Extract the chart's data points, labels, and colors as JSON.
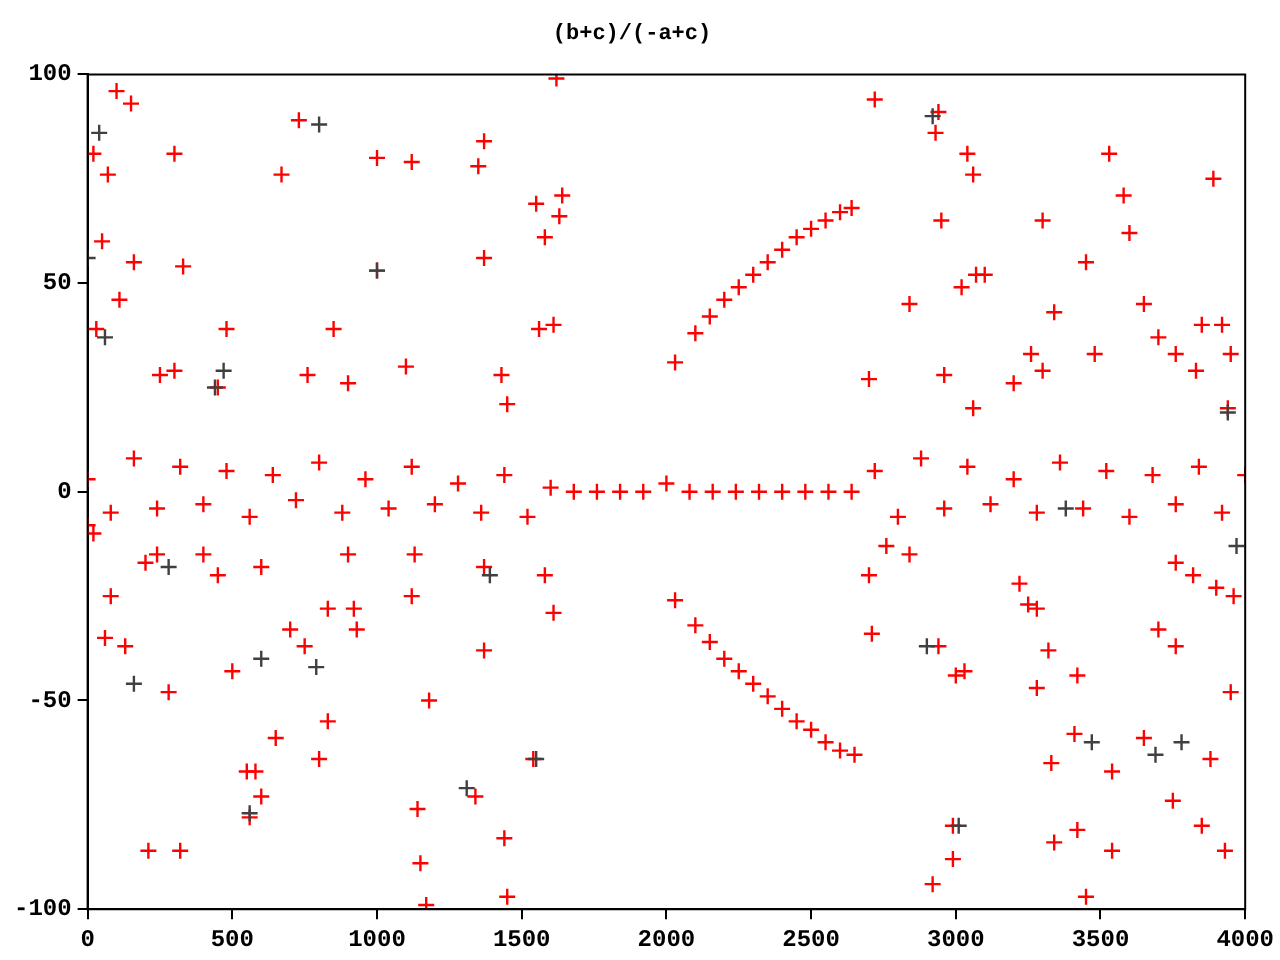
{
  "chart_data": {
    "type": "scatter",
    "title": "(b+c)/(-a+c)",
    "xlim": [
      0,
      4000
    ],
    "xticks": [
      0,
      500,
      1000,
      1500,
      2000,
      2500,
      3000,
      3500,
      4000
    ],
    "ylim": [
      -100,
      100
    ],
    "yticks": [
      -100,
      -50,
      0,
      50,
      100
    ],
    "grid": false,
    "marker": "cross",
    "series": [
      {
        "color": "#404040",
        "x": [
          0,
          40,
          60,
          160,
          280,
          440,
          470,
          560,
          600,
          790,
          800,
          1000,
          1310,
          1390,
          1550,
          2900,
          2920,
          3010,
          3380,
          3470,
          3690,
          3780,
          3940,
          3970
        ],
        "values": [
          56,
          86,
          37,
          -46,
          -18,
          25,
          29,
          -77,
          -40,
          -42,
          88,
          53,
          -71,
          -20,
          -64,
          -37,
          90,
          -80,
          -4,
          -60,
          -63,
          -60,
          19,
          -13
        ]
      },
      {
        "color": "#ff0000",
        "x": [
          0,
          20,
          30,
          50,
          70,
          100,
          110,
          150,
          160,
          300,
          330,
          20,
          60,
          80,
          130,
          210,
          320,
          280,
          250,
          300,
          480,
          500,
          550,
          580,
          560,
          600,
          650,
          670,
          730,
          800,
          830,
          850,
          1000,
          1000,
          1120,
          1120,
          1140,
          1150,
          1170,
          1180,
          1350,
          1370,
          1370,
          1340,
          1450,
          1440,
          1540,
          1550,
          1580,
          1620,
          1640,
          1630,
          1560,
          1610,
          1580,
          1610,
          1370,
          1370,
          400,
          450,
          600,
          700,
          750,
          900,
          930,
          920,
          1130,
          200,
          240,
          830,
          1430,
          1450,
          450,
          760,
          1100,
          900,
          2030,
          2100,
          2150,
          2200,
          2250,
          2300,
          2350,
          2400,
          2450,
          2500,
          2550,
          2600,
          2640,
          2030,
          2100,
          2150,
          2200,
          2250,
          2300,
          2350,
          2400,
          2450,
          2500,
          2550,
          2600,
          2650,
          2720,
          2940,
          2930,
          3040,
          3060,
          2950,
          2840,
          3020,
          3070,
          3100,
          3340,
          3530,
          3580,
          3600,
          3300,
          3450,
          3650,
          3890,
          3850,
          3920,
          3950,
          2700,
          2960,
          3060,
          3200,
          3260,
          3300,
          3480,
          3700,
          3760,
          3830,
          3940,
          2710,
          2940,
          3000,
          3030,
          3280,
          3320,
          3420,
          3330,
          3410,
          3650,
          3540,
          3750,
          3850,
          3930,
          3950,
          3880,
          2990,
          2990,
          2920,
          3340,
          3420,
          3450,
          3540,
          3220,
          3250,
          3280,
          3700,
          3760,
          3760,
          3820,
          3900,
          3960,
          2700,
          2840,
          2760,
          0,
          80,
          160,
          240,
          320,
          400,
          480,
          560,
          640,
          720,
          800,
          880,
          960,
          1040,
          1120,
          1200,
          1280,
          1360,
          1440,
          1520,
          1600,
          1680,
          1760,
          1840,
          1920,
          2000,
          2080,
          2160,
          2240,
          2320,
          2400,
          2480,
          2560,
          2640,
          2720,
          2800,
          2880,
          2960,
          3040,
          3120,
          3200,
          3280,
          3360,
          3440,
          3520,
          3600,
          3680,
          3760,
          3840,
          3920,
          4000
        ],
        "values": [
          -8,
          81,
          39,
          60,
          76,
          96,
          46,
          93,
          55,
          81,
          54,
          -10,
          -35,
          -25,
          -37,
          -86,
          -86,
          -48,
          28,
          29,
          39,
          -43,
          -67,
          -67,
          -78,
          -73,
          -59,
          76,
          89,
          -64,
          -55,
          39,
          80,
          53,
          79,
          -25,
          -76,
          -89,
          -99,
          -50,
          78,
          84,
          56,
          -73,
          -97,
          -83,
          -64,
          69,
          61,
          99,
          71,
          66,
          39,
          40,
          -20,
          -29,
          -38,
          -18,
          -15,
          -20,
          -18,
          -33,
          -37,
          -15,
          -33,
          -28,
          -15,
          -17,
          -15,
          -28,
          28,
          21,
          25,
          28,
          30,
          26,
          31,
          38,
          42,
          46,
          49,
          52,
          55,
          58,
          61,
          63,
          65,
          67,
          68,
          -26,
          -32,
          -36,
          -40,
          -43,
          -46,
          -49,
          -52,
          -55,
          -57,
          -60,
          -62,
          -63,
          94,
          91,
          86,
          81,
          76,
          65,
          45,
          49,
          52,
          52,
          43,
          81,
          71,
          62,
          65,
          55,
          45,
          75,
          40,
          40,
          33,
          27,
          28,
          20,
          26,
          33,
          29,
          33,
          37,
          33,
          29,
          20,
          -34,
          -37,
          -44,
          -43,
          -47,
          -38,
          -44,
          -65,
          -58,
          -59,
          -67,
          -74,
          -80,
          -86,
          -48,
          -64,
          -80,
          -88,
          -94,
          -84,
          -81,
          -97,
          -86,
          -22,
          -27,
          -28,
          -33,
          -37,
          -17,
          -20,
          -23,
          -25,
          -20,
          -15,
          -13,
          3,
          -5,
          8,
          -4,
          6,
          -3,
          5,
          -6,
          4,
          -2,
          7,
          -5,
          3,
          -4,
          6,
          -3,
          2,
          -5,
          4,
          -6,
          1,
          0,
          0,
          0,
          0,
          2,
          0,
          0,
          0,
          0,
          0,
          0,
          0,
          0,
          5,
          -6,
          8,
          -4,
          6,
          -3,
          3,
          -5,
          7,
          -4,
          5,
          -6,
          4,
          -3,
          6,
          -5,
          4
        ]
      }
    ]
  }
}
